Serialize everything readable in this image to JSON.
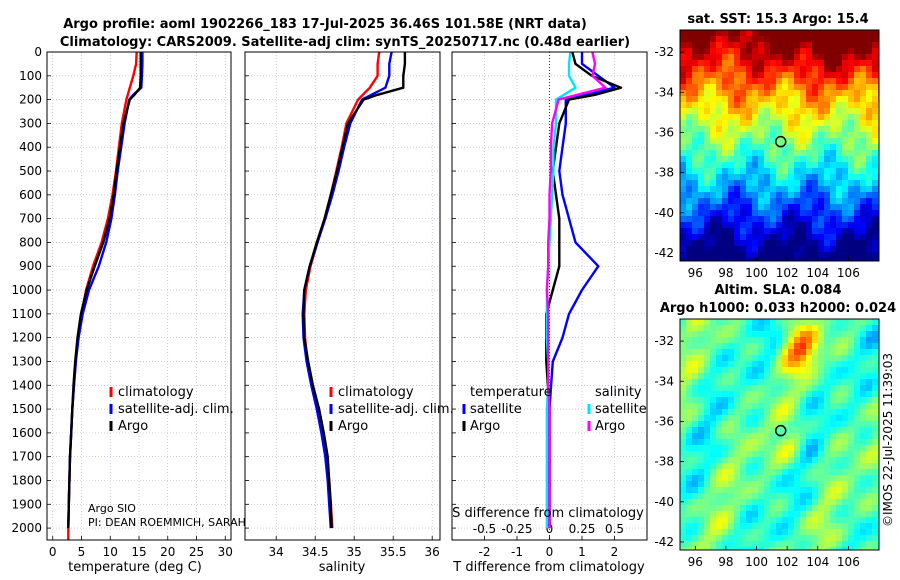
{
  "titles": {
    "line1": "Argo profile: aoml 1902266_183 17-Jul-2025 36.46S 101.58E (NRT data)",
    "line2": "Climatology: CARS2009. Satellite-adj clim: synTS_20250717.nc (0.48d earlier)",
    "sst": "sat. SST: 15.3 Argo: 15.4",
    "sla1": "Altim. SLA: 0.084",
    "sla2": "Argo h1000: 0.033 h2000: 0.024",
    "imos": "©IMOS 22-Jul-2025 11:39:03"
  },
  "attribution": {
    "line1": "Argo SIO",
    "line2": "PI: DEAN ROEMMICH, SARAH"
  },
  "colors": {
    "climatology": "#ff0000",
    "satellite": "#0000ff",
    "argo": "#000000",
    "s_satellite": "#00e5ff",
    "s_argo": "#ff00ff",
    "grid": "#b0b0c8"
  },
  "chart_data": [
    {
      "type": "line",
      "title": "",
      "xlabel": "temperature (deg C)",
      "ylabel": "",
      "xlim": [
        -1,
        31
      ],
      "ylim": [
        2050,
        0
      ],
      "xticks": [
        0,
        5,
        10,
        15,
        20,
        25,
        30
      ],
      "yticks": [
        0,
        100,
        200,
        300,
        400,
        500,
        600,
        700,
        800,
        900,
        1000,
        1100,
        1200,
        1300,
        1400,
        1500,
        1600,
        1700,
        1800,
        1900,
        2000
      ],
      "legend": [
        "climatology",
        "satellite-adj. clim.",
        "Argo"
      ],
      "legend_location": "center-right",
      "series": [
        {
          "name": "climatology",
          "depth": [
            0,
            50,
            100,
            150,
            200,
            300,
            400,
            500,
            600,
            700,
            800,
            900,
            1000,
            1100,
            1200,
            1300,
            1400,
            1500,
            1600,
            1700,
            1800,
            1900,
            2000,
            2050
          ],
          "values": [
            14.6,
            14.5,
            14.0,
            13.4,
            12.8,
            12.0,
            11.5,
            11.0,
            10.4,
            9.6,
            8.5,
            7.0,
            5.8,
            5.0,
            4.4,
            4.0,
            3.7,
            3.4,
            3.2,
            3.0,
            2.9,
            2.8,
            2.7,
            2.7
          ]
        },
        {
          "name": "satellite-adj. clim.",
          "depth": [
            0,
            50,
            100,
            150,
            180,
            200,
            300,
            400,
            500,
            600,
            700,
            800,
            900,
            1000,
            1100,
            1200,
            1300,
            1400,
            1500,
            1600,
            1700,
            1800,
            1900,
            2000
          ],
          "values": [
            15.6,
            15.6,
            15.5,
            15.4,
            14.0,
            13.3,
            12.5,
            11.9,
            11.3,
            10.8,
            10.2,
            9.3,
            8.0,
            6.3,
            5.2,
            4.5,
            4.0,
            3.7,
            3.4,
            3.2,
            3.0,
            2.9,
            2.8,
            2.7
          ]
        },
        {
          "name": "Argo",
          "depth": [
            0,
            50,
            100,
            150,
            180,
            200,
            300,
            400,
            500,
            600,
            700,
            800,
            900,
            1000,
            1100,
            1200,
            1300,
            1400,
            1500,
            1600,
            1700,
            1800,
            1900,
            2000
          ],
          "values": [
            15.3,
            15.3,
            15.3,
            15.2,
            14.2,
            13.4,
            12.3,
            11.7,
            11.1,
            10.6,
            9.9,
            8.8,
            7.3,
            5.9,
            4.9,
            4.3,
            3.9,
            3.6,
            3.4,
            3.2,
            3.0,
            2.9,
            2.8,
            2.7
          ]
        }
      ]
    },
    {
      "type": "line",
      "title": "",
      "xlabel": "salinity",
      "ylabel": "",
      "xlim": [
        33.6,
        36.1
      ],
      "ylim": [
        2050,
        0
      ],
      "xticks": [
        34,
        34.5,
        35,
        35.5,
        36
      ],
      "legend": [
        "climatology",
        "satellite-adj. clim.",
        "Argo"
      ],
      "legend_location": "center-right",
      "series": [
        {
          "name": "climatology",
          "depth": [
            0,
            50,
            100,
            150,
            200,
            300,
            400,
            500,
            600,
            700,
            800,
            900,
            1000,
            1100,
            1200,
            1300,
            1400,
            1500,
            1600,
            1700,
            1800,
            1900,
            2000
          ],
          "values": [
            35.32,
            35.3,
            35.3,
            35.2,
            35.05,
            34.9,
            34.84,
            34.77,
            34.7,
            34.62,
            34.53,
            34.44,
            34.38,
            34.36,
            34.37,
            34.4,
            34.46,
            34.54,
            34.6,
            34.65,
            34.68,
            34.7,
            34.72
          ]
        },
        {
          "name": "satellite-adj. clim.",
          "depth": [
            0,
            50,
            100,
            150,
            200,
            300,
            400,
            500,
            600,
            700,
            800,
            900,
            1000,
            1100,
            1200,
            1300,
            1400,
            1500,
            1600,
            1700,
            1800,
            1900,
            2000
          ],
          "values": [
            35.48,
            35.45,
            35.45,
            35.4,
            35.1,
            34.95,
            34.87,
            34.8,
            34.72,
            34.63,
            34.53,
            34.43,
            34.36,
            34.34,
            34.35,
            34.39,
            34.45,
            34.52,
            34.58,
            34.63,
            34.66,
            34.68,
            34.7
          ]
        },
        {
          "name": "Argo",
          "depth": [
            0,
            50,
            100,
            150,
            180,
            200,
            300,
            400,
            500,
            600,
            700,
            800,
            900,
            1000,
            1100,
            1200,
            1300,
            1400,
            1500,
            1600,
            1700,
            1800,
            1900,
            2000
          ],
          "values": [
            35.65,
            35.65,
            35.63,
            35.63,
            35.3,
            35.12,
            34.92,
            34.85,
            34.78,
            34.7,
            34.62,
            34.52,
            34.43,
            34.36,
            34.35,
            34.36,
            34.41,
            34.47,
            34.55,
            34.61,
            34.66,
            34.68,
            34.7,
            34.71
          ]
        }
      ]
    },
    {
      "type": "line",
      "title": "",
      "xlabel": "T difference from climatology",
      "secondary_xlabel": "S difference from climatology",
      "ylabel": "",
      "xlim": [
        -3,
        3
      ],
      "ylim": [
        2050,
        0
      ],
      "xticks": [
        -2,
        -1,
        0,
        1,
        2
      ],
      "xticklabels": [
        "-2",
        "-1",
        "0",
        "1",
        "2"
      ],
      "secondary_xticks": [
        -0.5,
        -0.25,
        0,
        0.25,
        0.5
      ],
      "secondary_xticklabels": [
        "-0.5",
        "-0.25",
        "0",
        "0.25",
        "0.5"
      ],
      "legend_temperature": [
        "temperature",
        "satellite",
        "Argo"
      ],
      "legend_salinity": [
        "salinity",
        "satellite",
        "Argo"
      ],
      "legend_location": "center-right",
      "series": [
        {
          "name": "T satellite",
          "depth": [
            0,
            50,
            100,
            150,
            200,
            300,
            400,
            500,
            600,
            700,
            800,
            900,
            1000,
            1100,
            1200,
            1300,
            1400,
            1500,
            1600,
            1700,
            1800,
            1900,
            2000
          ],
          "values": [
            1.0,
            1.0,
            1.5,
            2.0,
            0.5,
            0.5,
            0.4,
            0.3,
            0.4,
            0.6,
            0.8,
            1.5,
            1.0,
            0.6,
            0.4,
            0.1,
            0.05,
            0.0,
            0.0,
            0.0,
            0.0,
            0.0,
            0.0
          ]
        },
        {
          "name": "T Argo",
          "depth": [
            0,
            50,
            100,
            150,
            180,
            200,
            300,
            400,
            500,
            600,
            700,
            800,
            900,
            1000,
            1100,
            1200,
            1300,
            1400,
            1500,
            1600,
            1700,
            1800,
            1900,
            2000
          ],
          "values": [
            0.7,
            0.8,
            1.3,
            2.2,
            1.4,
            0.6,
            0.3,
            0.2,
            0.1,
            0.2,
            0.3,
            0.3,
            0.3,
            0.1,
            -0.1,
            -0.1,
            -0.1,
            -0.05,
            0.0,
            0.0,
            0.0,
            0.0,
            0.0,
            0.0
          ]
        },
        {
          "name": "S satellite",
          "depth": [
            0,
            50,
            100,
            150,
            200,
            300,
            400,
            500,
            600,
            700,
            800,
            900,
            1000,
            1100,
            1200,
            1300,
            1400,
            1500,
            1600,
            1700,
            1800,
            1900,
            2000
          ],
          "values": [
            0.16,
            0.15,
            0.15,
            0.2,
            0.05,
            0.05,
            0.03,
            0.03,
            0.02,
            0.01,
            0.0,
            -0.01,
            -0.02,
            -0.02,
            -0.02,
            -0.01,
            -0.01,
            -0.02,
            -0.02,
            -0.02,
            -0.02,
            -0.02,
            -0.02
          ]
        },
        {
          "name": "S Argo",
          "depth": [
            0,
            50,
            100,
            150,
            200,
            300,
            400,
            500,
            600,
            700,
            800,
            900,
            1000,
            1100,
            1200,
            1300,
            1400,
            1500,
            1600,
            1700,
            1800,
            1900,
            2000
          ],
          "values": [
            0.33,
            0.35,
            0.33,
            0.43,
            0.07,
            0.02,
            0.01,
            0.01,
            0.0,
            0.0,
            -0.01,
            -0.01,
            -0.02,
            -0.01,
            -0.01,
            -0.01,
            -0.01,
            0.0,
            0.0,
            0.0,
            0.0,
            0.0,
            0.0
          ]
        }
      ]
    },
    {
      "type": "heatmap",
      "title": "sat. SST: 15.3 Argo: 15.4",
      "xticks": [
        96,
        98,
        100,
        102,
        104,
        106
      ],
      "yticks": [
        -32,
        -34,
        -36,
        -38,
        -40,
        -42
      ],
      "xlim": [
        95,
        108
      ],
      "ylim": [
        -42.4,
        -30.9
      ],
      "marker": {
        "lon": 101.58,
        "lat": -36.46
      }
    },
    {
      "type": "heatmap",
      "title": "Altim. SLA: 0.084 / Argo h1000: 0.033 h2000: 0.024",
      "xticks": [
        96,
        98,
        100,
        102,
        104,
        106
      ],
      "yticks": [
        -32,
        -34,
        -36,
        -38,
        -40,
        -42
      ],
      "xlim": [
        95,
        108
      ],
      "ylim": [
        -42.4,
        -30.9
      ],
      "marker": {
        "lon": 101.58,
        "lat": -36.46
      }
    }
  ]
}
